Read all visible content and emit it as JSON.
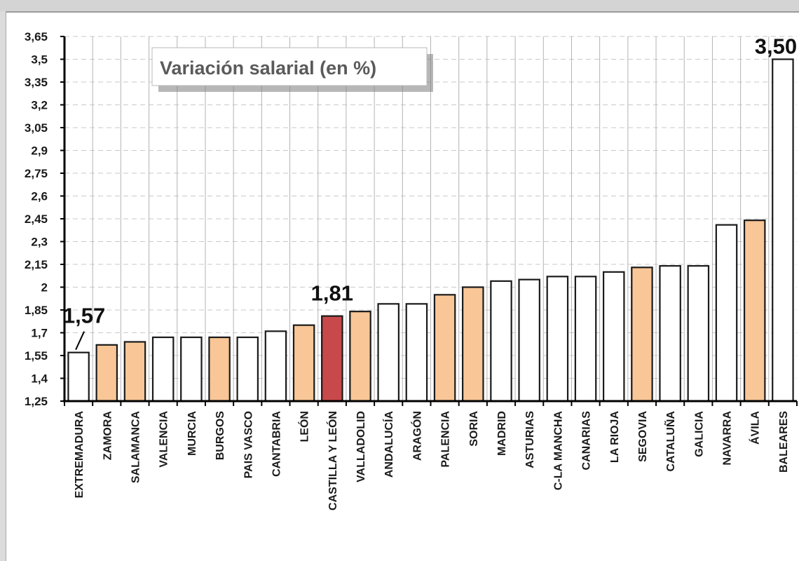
{
  "chart_data": {
    "type": "bar",
    "title": "Variación salarial (en %)",
    "ylim": [
      1.25,
      3.65
    ],
    "yticks": [
      "3,65",
      "3,5",
      "3,35",
      "3,2",
      "3,05",
      "2,9",
      "2,75",
      "2,6",
      "2,45",
      "2,3",
      "2,15",
      "2",
      "1,85",
      "1,7",
      "1,55",
      "1,4",
      "1,25"
    ],
    "grid": true,
    "categories": [
      "EXTREMADURA",
      "ZAMORA",
      "SALAMANCA",
      "VALENCIA",
      "MURCIA",
      "BURGOS",
      "PAIS VASCO",
      "CANTABRIA",
      "LEÓN",
      "CASTILLA Y LEÓN",
      "VALLADOLID",
      "ANDALUCÍA",
      "ARAGÓN",
      "PALENCIA",
      "SORIA",
      "MADRID",
      "ASTURIAS",
      "C-LA MANCHA",
      "CANARIAS",
      "LA RIOJA",
      "SEGOVIA",
      "CATALUÑA",
      "GALICIA",
      "NAVARRA",
      "ÁVILA",
      "BALEARES"
    ],
    "values": [
      1.57,
      1.62,
      1.64,
      1.67,
      1.67,
      1.67,
      1.67,
      1.71,
      1.75,
      1.81,
      1.84,
      1.89,
      1.89,
      1.95,
      2.0,
      2.04,
      2.05,
      2.07,
      2.07,
      2.1,
      2.13,
      2.14,
      2.14,
      2.41,
      2.44,
      3.5
    ],
    "bar_colors": [
      "#ffffff",
      "#f8c697",
      "#f8c697",
      "#ffffff",
      "#ffffff",
      "#f8c697",
      "#ffffff",
      "#ffffff",
      "#f8c697",
      "#c8494b",
      "#f8c697",
      "#ffffff",
      "#ffffff",
      "#f8c697",
      "#f8c697",
      "#ffffff",
      "#ffffff",
      "#ffffff",
      "#ffffff",
      "#ffffff",
      "#f8c697",
      "#ffffff",
      "#ffffff",
      "#ffffff",
      "#f8c697",
      "#ffffff"
    ],
    "data_labels": [
      {
        "index": 0,
        "text": "1,57"
      },
      {
        "index": 9,
        "text": "1,81"
      },
      {
        "index": 25,
        "text": "3,50"
      }
    ]
  }
}
